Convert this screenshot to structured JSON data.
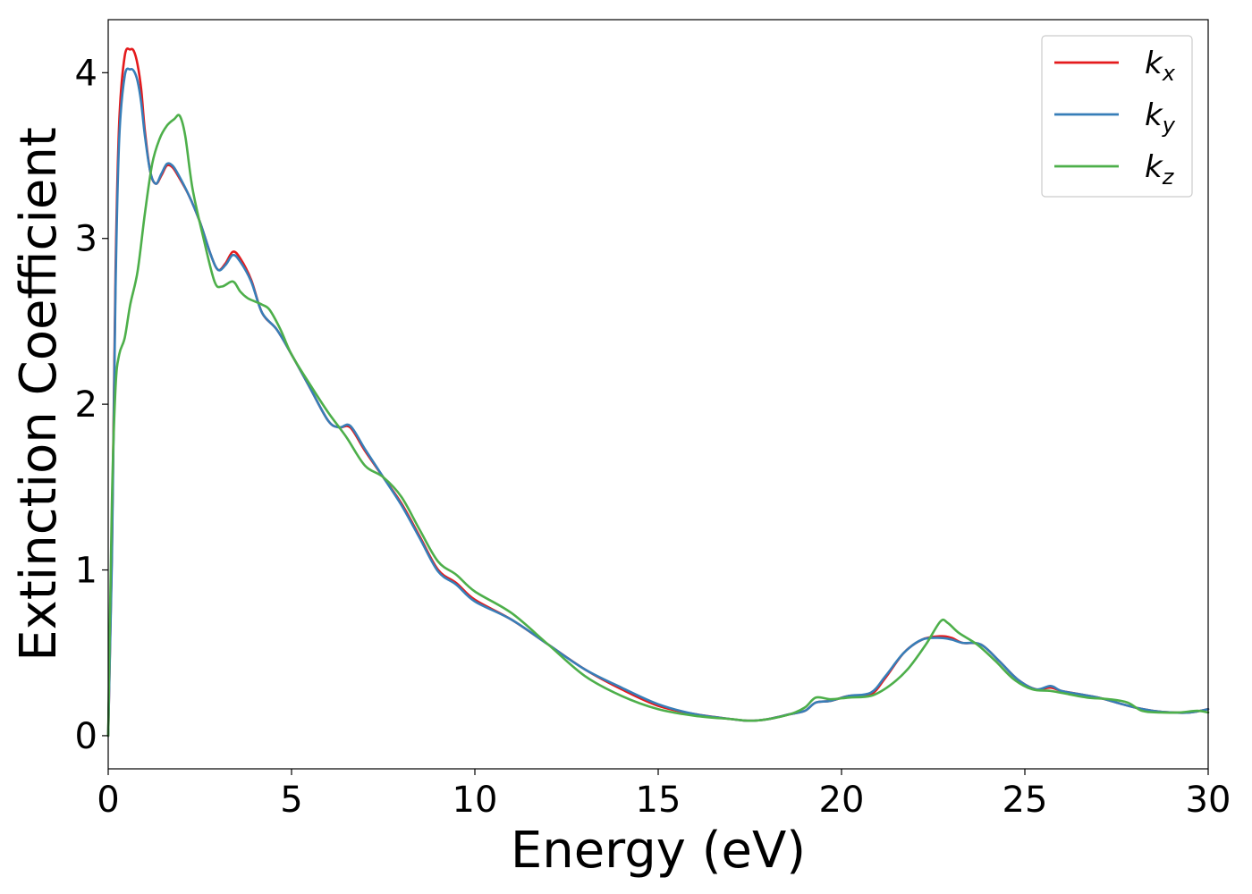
{
  "chart_data": {
    "type": "line",
    "xlabel": "Energy (eV)",
    "ylabel": "Extinction Coefficient",
    "xlim": [
      0,
      30
    ],
    "ylim": [
      -0.2,
      4.32
    ],
    "xticks": [
      0,
      5,
      10,
      15,
      20,
      25,
      30
    ],
    "yticks": [
      0,
      1,
      2,
      3,
      4
    ],
    "grid": false,
    "legend_position": "top-right",
    "series": [
      {
        "name": "k_x",
        "label_main": "k",
        "label_sub": "x",
        "color": "#e41a1c",
        "x": [
          0,
          0.1,
          0.2,
          0.3,
          0.45,
          0.6,
          0.7,
          0.8,
          0.9,
          1.0,
          1.15,
          1.3,
          1.45,
          1.6,
          1.75,
          1.9,
          2.2,
          2.5,
          2.8,
          3.0,
          3.2,
          3.4,
          3.6,
          3.9,
          4.2,
          4.6,
          5.0,
          5.5,
          6.0,
          6.3,
          6.6,
          7.0,
          7.5,
          8.0,
          8.5,
          9.0,
          9.5,
          10.0,
          11.0,
          12.0,
          13.0,
          14.0,
          15.0,
          16.0,
          17.0,
          17.5,
          18.0,
          18.6,
          19.0,
          19.3,
          19.7,
          20.2,
          20.8,
          21.2,
          21.7,
          22.2,
          22.7,
          23.0,
          23.3,
          23.8,
          24.3,
          24.8,
          25.3,
          25.7,
          26.0,
          26.5,
          27.0,
          27.5,
          28.0,
          28.5,
          29.0,
          29.5,
          30.0
        ],
        "values": [
          0.0,
          1.1,
          2.8,
          3.7,
          4.1,
          4.14,
          4.13,
          4.05,
          3.9,
          3.65,
          3.4,
          3.33,
          3.38,
          3.44,
          3.43,
          3.38,
          3.26,
          3.1,
          2.9,
          2.81,
          2.85,
          2.92,
          2.88,
          2.75,
          2.55,
          2.45,
          2.3,
          2.1,
          1.9,
          1.86,
          1.86,
          1.72,
          1.56,
          1.4,
          1.2,
          1.0,
          0.92,
          0.82,
          0.7,
          0.55,
          0.4,
          0.28,
          0.18,
          0.13,
          0.1,
          0.09,
          0.1,
          0.13,
          0.15,
          0.2,
          0.21,
          0.24,
          0.25,
          0.35,
          0.5,
          0.58,
          0.6,
          0.59,
          0.56,
          0.55,
          0.45,
          0.34,
          0.28,
          0.29,
          0.27,
          0.25,
          0.23,
          0.2,
          0.17,
          0.15,
          0.14,
          0.14,
          0.16
        ]
      },
      {
        "name": "k_y",
        "label_main": "k",
        "label_sub": "y",
        "color": "#377eb8",
        "x": [
          0,
          0.1,
          0.2,
          0.3,
          0.45,
          0.6,
          0.7,
          0.8,
          0.9,
          1.0,
          1.15,
          1.3,
          1.45,
          1.6,
          1.75,
          1.9,
          2.2,
          2.5,
          2.8,
          3.0,
          3.2,
          3.4,
          3.6,
          3.9,
          4.2,
          4.6,
          5.0,
          5.5,
          6.0,
          6.3,
          6.6,
          7.0,
          7.5,
          8.0,
          8.5,
          9.0,
          9.5,
          10.0,
          11.0,
          12.0,
          13.0,
          14.0,
          15.0,
          16.0,
          17.0,
          17.5,
          18.0,
          18.6,
          19.0,
          19.3,
          19.7,
          20.2,
          20.8,
          21.2,
          21.7,
          22.2,
          22.7,
          23.0,
          23.3,
          23.8,
          24.3,
          24.8,
          25.3,
          25.7,
          26.0,
          26.5,
          27.0,
          27.5,
          28.0,
          28.5,
          29.0,
          29.5,
          30.0
        ],
        "values": [
          0.0,
          1.05,
          2.7,
          3.6,
          3.98,
          4.02,
          4.01,
          3.95,
          3.82,
          3.62,
          3.4,
          3.33,
          3.39,
          3.45,
          3.44,
          3.39,
          3.26,
          3.1,
          2.9,
          2.81,
          2.84,
          2.9,
          2.86,
          2.74,
          2.55,
          2.45,
          2.3,
          2.1,
          1.9,
          1.86,
          1.87,
          1.73,
          1.56,
          1.39,
          1.19,
          0.99,
          0.91,
          0.81,
          0.7,
          0.55,
          0.4,
          0.29,
          0.19,
          0.13,
          0.1,
          0.09,
          0.1,
          0.13,
          0.15,
          0.2,
          0.21,
          0.24,
          0.26,
          0.36,
          0.5,
          0.58,
          0.59,
          0.58,
          0.56,
          0.55,
          0.45,
          0.34,
          0.28,
          0.3,
          0.27,
          0.25,
          0.23,
          0.2,
          0.17,
          0.15,
          0.14,
          0.14,
          0.16
        ]
      },
      {
        "name": "k_z",
        "label_main": "k",
        "label_sub": "z",
        "color": "#4daf4a",
        "x": [
          0,
          0.1,
          0.2,
          0.3,
          0.45,
          0.6,
          0.8,
          1.0,
          1.2,
          1.4,
          1.6,
          1.8,
          1.95,
          2.1,
          2.3,
          2.6,
          2.9,
          3.1,
          3.4,
          3.6,
          3.8,
          4.0,
          4.2,
          4.4,
          4.7,
          5.0,
          5.5,
          6.0,
          6.5,
          7.0,
          7.5,
          8.0,
          8.5,
          9.0,
          9.5,
          10.0,
          11.0,
          12.0,
          13.0,
          14.0,
          15.0,
          16.0,
          17.0,
          17.5,
          18.0,
          18.6,
          19.0,
          19.3,
          19.7,
          20.2,
          20.8,
          21.3,
          21.8,
          22.3,
          22.7,
          22.9,
          23.2,
          23.7,
          24.2,
          24.7,
          25.2,
          25.7,
          26.2,
          26.7,
          27.3,
          27.8,
          28.2,
          28.7,
          29.2,
          29.7,
          30.0
        ],
        "values": [
          0.0,
          1.4,
          2.1,
          2.3,
          2.4,
          2.6,
          2.8,
          3.15,
          3.45,
          3.6,
          3.68,
          3.72,
          3.74,
          3.62,
          3.3,
          3.0,
          2.74,
          2.71,
          2.74,
          2.68,
          2.64,
          2.62,
          2.6,
          2.57,
          2.45,
          2.3,
          2.12,
          1.95,
          1.8,
          1.63,
          1.56,
          1.44,
          1.24,
          1.05,
          0.97,
          0.87,
          0.74,
          0.55,
          0.36,
          0.24,
          0.16,
          0.12,
          0.1,
          0.09,
          0.1,
          0.13,
          0.17,
          0.23,
          0.22,
          0.23,
          0.24,
          0.3,
          0.4,
          0.55,
          0.69,
          0.68,
          0.62,
          0.55,
          0.45,
          0.34,
          0.28,
          0.27,
          0.25,
          0.23,
          0.22,
          0.2,
          0.15,
          0.14,
          0.14,
          0.15,
          0.14
        ]
      }
    ]
  }
}
